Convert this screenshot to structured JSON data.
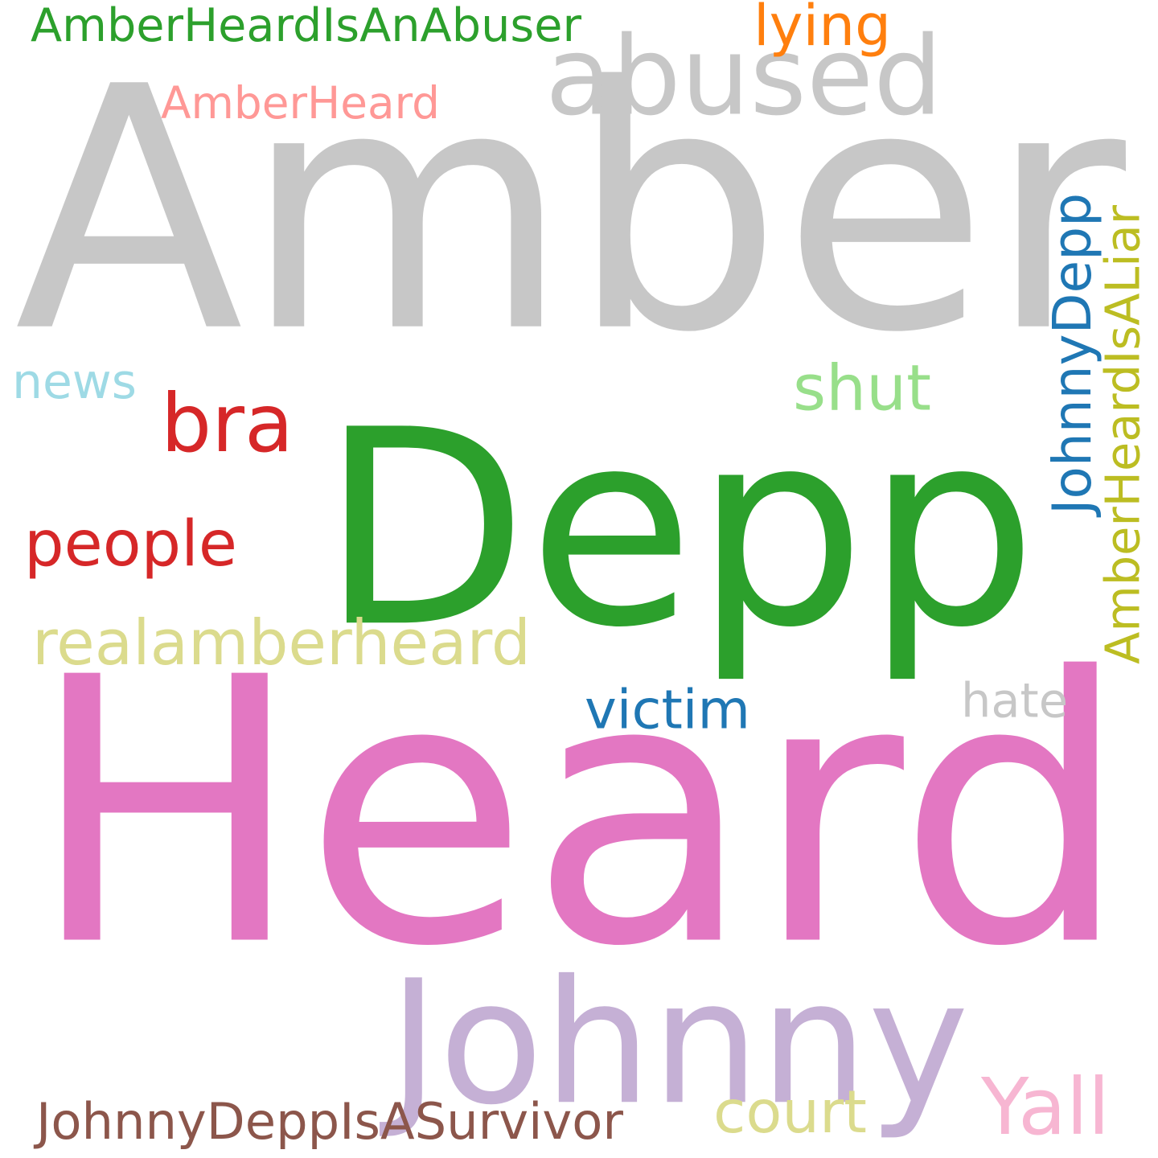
{
  "word_cloud": {
    "words": [
      {
        "id": "amber",
        "text": "Amber",
        "color": "#c7c7c7"
      },
      {
        "id": "heard",
        "text": "Heard",
        "color": "#e377c2"
      },
      {
        "id": "depp",
        "text": "Depp",
        "color": "#2ca02c"
      },
      {
        "id": "johnny",
        "text": "Johnny",
        "color": "#c5b0d5"
      },
      {
        "id": "abused",
        "text": "abused",
        "color": "#c7c7c7"
      },
      {
        "id": "amberheardisanabuser",
        "text": "AmberHeardIsAnAbuser",
        "color": "#2ca02c"
      },
      {
        "id": "lying",
        "text": "lying",
        "color": "#ff7f0e"
      },
      {
        "id": "amberheard",
        "text": "AmberHeard",
        "color": "#ff9896"
      },
      {
        "id": "news",
        "text": "news",
        "color": "#9edae5"
      },
      {
        "id": "bra",
        "text": "bra",
        "color": "#d62728"
      },
      {
        "id": "shut",
        "text": "shut",
        "color": "#98df8a"
      },
      {
        "id": "people",
        "text": "people",
        "color": "#d62728"
      },
      {
        "id": "realamberheard",
        "text": "realamberheard",
        "color": "#dbdb8d"
      },
      {
        "id": "johnnydepp",
        "text": "JohnnyDepp",
        "color": "#1f77b4"
      },
      {
        "id": "amberheardisaliar",
        "text": "AmberHeardIsALiar",
        "color": "#bcbd22"
      },
      {
        "id": "victim",
        "text": "victim",
        "color": "#1f77b4"
      },
      {
        "id": "hate",
        "text": "hate",
        "color": "#c7c7c7"
      },
      {
        "id": "court",
        "text": "court",
        "color": "#dbdb8d"
      },
      {
        "id": "yall",
        "text": "Yall",
        "color": "#f7b6d2"
      },
      {
        "id": "johnnydeppisasurvivor",
        "text": "JohnnyDeppIsASurvivor",
        "color": "#8c564b"
      }
    ]
  }
}
